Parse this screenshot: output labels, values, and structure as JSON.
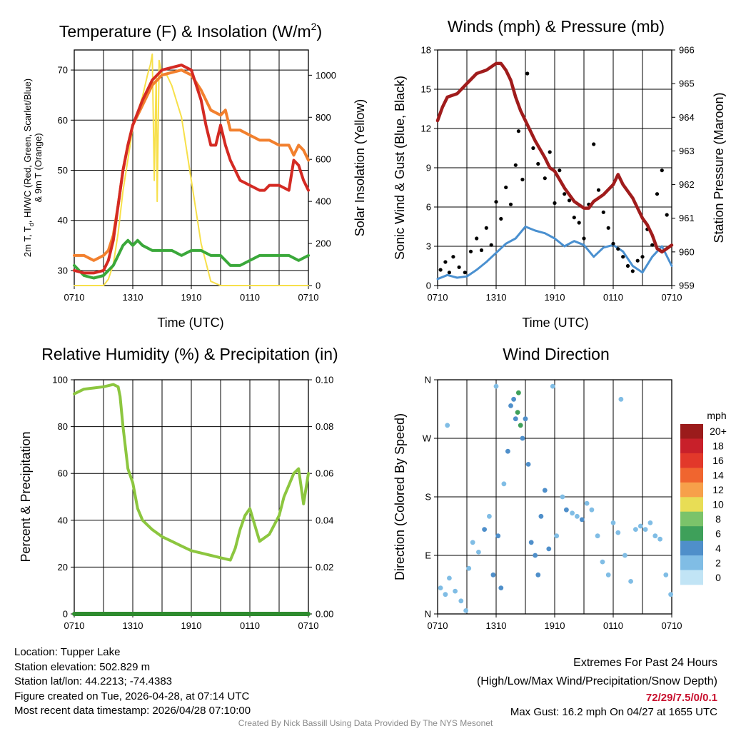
{
  "panels": {
    "temperature": {
      "title": "Temperature (F) & Insolation (W/m",
      "title_sup": "2",
      "title_end": ")",
      "ylabel_line1": "2m T, T",
      "ylabel_sub": "d",
      "ylabel_line1_end": ", HI/WC (Red, Green, Scarlet/Blue)",
      "ylabel_line2": "& 9m T (Orange)",
      "ylabel_right": "Solar Insolation (Yellow)",
      "xlabel": "Time (UTC)"
    },
    "winds": {
      "title": "Winds (mph) & Pressure (mb)",
      "ylabel_left": "Sonic Wind & Gust (Blue, Black)",
      "ylabel_right": "Station Pressure (Maroon)",
      "xlabel": "Time (UTC)"
    },
    "humidity": {
      "title": "Relative Humidity (%) & Precipitation (in)",
      "ylabel": "Percent & Precipitation"
    },
    "direction": {
      "title": "Wind Direction",
      "ylabel": "Direction (Colored By Speed)",
      "legend_title": "mph"
    }
  },
  "chart_data": [
    {
      "type": "line",
      "id": "temperature",
      "x_ticks": [
        "0710",
        "1310",
        "1910",
        "0110",
        "0710"
      ],
      "x_range_hours": [
        0,
        24
      ],
      "ylim": [
        27,
        74
      ],
      "y_ticks": [
        30,
        40,
        50,
        60,
        70
      ],
      "y2lim": [
        0,
        1120
      ],
      "y2_ticks": [
        0,
        200,
        400,
        600,
        800,
        1000
      ],
      "series": [
        {
          "name": "2m T",
          "color": "#d42a23",
          "axis": "left",
          "x": [
            0,
            1,
            2,
            3,
            3.5,
            4,
            4.5,
            5,
            5.5,
            6,
            7,
            8,
            9,
            10,
            11,
            12,
            13,
            13.5,
            14,
            14.5,
            15,
            15.5,
            16,
            16.5,
            17,
            18,
            19,
            19.5,
            20,
            21,
            22,
            22.5,
            23,
            23.5,
            24
          ],
          "y": [
            30,
            29.5,
            29.5,
            30,
            32,
            36,
            43,
            50,
            55,
            59,
            64,
            68,
            70,
            70.5,
            71,
            70,
            64,
            59,
            55,
            55,
            59,
            55,
            52,
            50,
            48,
            47,
            46,
            46,
            47,
            47,
            46,
            52,
            51,
            48,
            46
          ]
        },
        {
          "name": "9m T",
          "color": "#f2802e",
          "axis": "left",
          "x": [
            0,
            1,
            2,
            3,
            3.5,
            4,
            4.5,
            5,
            5.5,
            6,
            7,
            8,
            9,
            10,
            11,
            12,
            13,
            14,
            15,
            15.5,
            16,
            17,
            18,
            19,
            20,
            21,
            21.5,
            22,
            22.5,
            23,
            23.5,
            24
          ],
          "y": [
            33,
            33,
            32,
            33,
            34,
            37,
            43,
            50,
            55,
            59,
            63,
            67,
            69,
            69.5,
            70,
            69,
            66,
            62,
            61,
            62,
            58,
            58,
            57,
            56,
            56,
            55,
            55,
            55,
            53,
            55,
            54,
            52
          ]
        },
        {
          "name": "HI/WC",
          "color": "#3aa83a",
          "axis": "left",
          "x": [
            0,
            1,
            2,
            3,
            3.5,
            4,
            4.5,
            5,
            5.5,
            6,
            6.5,
            7,
            8,
            9,
            10,
            11,
            12,
            13,
            14,
            15,
            16,
            17,
            18,
            19,
            20,
            21,
            22,
            23,
            24
          ],
          "y": [
            31,
            29,
            28.5,
            29,
            30,
            31,
            33,
            35,
            36,
            35,
            36,
            35,
            34,
            34,
            34,
            33,
            34,
            34,
            33,
            33,
            31,
            31,
            32,
            33,
            33,
            33,
            33,
            32,
            33
          ]
        },
        {
          "name": "Solar Insolation",
          "color": "#f7e04a",
          "axis": "right",
          "x": [
            0,
            1,
            2,
            3,
            3.5,
            4,
            4.5,
            5,
            5.5,
            6,
            7,
            7.5,
            7.8,
            8,
            8.2,
            8.4,
            8.5,
            8.7,
            9,
            9.5,
            10,
            11,
            12,
            13,
            14,
            15,
            16,
            17,
            18,
            19,
            20,
            21,
            22,
            23,
            24
          ],
          "y": [
            0,
            0,
            0,
            0,
            30,
            100,
            250,
            450,
            600,
            750,
            900,
            1000,
            1050,
            1100,
            500,
            1000,
            400,
            1070,
            1000,
            1000,
            950,
            800,
            500,
            200,
            20,
            0,
            0,
            0,
            0,
            0,
            0,
            0,
            0,
            0,
            0
          ]
        }
      ]
    },
    {
      "type": "scatter",
      "id": "winds",
      "x_ticks": [
        "0710",
        "1310",
        "1910",
        "0110",
        "0710"
      ],
      "x_range_hours": [
        0,
        24
      ],
      "ylim": [
        0,
        18
      ],
      "y_ticks": [
        0,
        3,
        6,
        9,
        12,
        15,
        18
      ],
      "y2lim": [
        959,
        966
      ],
      "y2_ticks": [
        959,
        960,
        961,
        962,
        963,
        964,
        965,
        966
      ],
      "series": [
        {
          "name": "Sonic Wind",
          "color": "#4a90d0",
          "axis": "left",
          "x": [
            0,
            1,
            2,
            3,
            4,
            5,
            6,
            7,
            8,
            9,
            10,
            11,
            12,
            13,
            14,
            15,
            16,
            17,
            18,
            19,
            20,
            21,
            22,
            23,
            24
          ],
          "y": [
            0.5,
            0.8,
            0.6,
            0.7,
            1.2,
            1.8,
            2.5,
            3.2,
            3.6,
            4.5,
            4.2,
            4.0,
            3.6,
            3.0,
            3.4,
            3.1,
            2.2,
            2.9,
            3.1,
            2.6,
            1.5,
            1.0,
            2.2,
            3.0,
            1.5
          ]
        },
        {
          "name": "Gust",
          "color": "#000000",
          "axis": "left",
          "x": [
            0.3,
            0.8,
            1.2,
            1.6,
            2.2,
            2.8,
            3.4,
            4.0,
            4.5,
            5.0,
            5.5,
            6.0,
            6.5,
            7.0,
            7.5,
            8.0,
            8.3,
            8.7,
            9.2,
            9.8,
            10.3,
            11.0,
            11.5,
            12.0,
            12.5,
            13.0,
            13.5,
            14.0,
            14.5,
            15.0,
            15.5,
            16.0,
            16.5,
            17.0,
            17.5,
            18.0,
            18.5,
            19.0,
            19.5,
            20.0,
            20.5,
            21.0,
            21.5,
            22.0,
            22.5,
            23.0,
            23.5
          ],
          "y": [
            1.2,
            1.8,
            1.0,
            2.2,
            1.4,
            1.0,
            2.6,
            3.6,
            2.7,
            4.4,
            3.1,
            6.4,
            5.1,
            7.5,
            6.2,
            9.2,
            11.8,
            8.1,
            16.2,
            10.5,
            9.3,
            8.2,
            10.2,
            6.3,
            8.8,
            7.0,
            6.5,
            5.2,
            4.8,
            3.6,
            6.2,
            10.8,
            7.3,
            5.6,
            4.4,
            3.2,
            2.8,
            2.2,
            1.5,
            1.1,
            1.9,
            2.2,
            4.3,
            3.1,
            7.0,
            8.8,
            5.4
          ]
        },
        {
          "name": "Station Pressure",
          "color": "#a01c1c",
          "axis": "right",
          "x": [
            0,
            0.5,
            1,
            2,
            3,
            4,
            5,
            6,
            6.5,
            7,
            7.5,
            8,
            8.5,
            9,
            10,
            11,
            11.5,
            12,
            13,
            14,
            15,
            15.5,
            16,
            17,
            18,
            18.5,
            19,
            20,
            21,
            21.5,
            22,
            22.5,
            23,
            23.5,
            24
          ],
          "y": [
            963.9,
            964.3,
            964.6,
            964.7,
            965.0,
            965.3,
            965.4,
            965.6,
            965.6,
            965.4,
            965.1,
            964.6,
            964.2,
            963.9,
            963.3,
            962.8,
            962.5,
            962.4,
            961.9,
            961.5,
            961.3,
            961.3,
            961.5,
            961.7,
            962.0,
            962.3,
            962.0,
            961.6,
            961.0,
            960.8,
            960.5,
            960.1,
            960.0,
            960.1,
            960.2
          ]
        }
      ]
    },
    {
      "type": "line",
      "id": "humidity",
      "x_ticks": [
        "0710",
        "1310",
        "1910",
        "0110",
        "0710"
      ],
      "x_range_hours": [
        0,
        24
      ],
      "ylim": [
        0,
        100
      ],
      "y_ticks": [
        0,
        20,
        40,
        60,
        80,
        100
      ],
      "y2lim": [
        0,
        0.1
      ],
      "y2_ticks": [
        "0.00",
        "0.02",
        "0.04",
        "0.06",
        "0.08",
        "0.10"
      ],
      "series": [
        {
          "name": "Relative Humidity",
          "color": "#8cc63f",
          "axis": "left",
          "x": [
            0,
            1,
            2,
            3,
            4,
            4.5,
            4.7,
            5,
            5.5,
            6,
            6.5,
            7,
            8,
            9,
            10,
            11,
            12,
            13,
            14,
            15,
            16,
            16.5,
            17,
            17.5,
            18,
            19,
            20,
            21,
            21.5,
            22,
            22.5,
            23,
            23.5,
            24
          ],
          "y": [
            94,
            96,
            96.5,
            97,
            98,
            97,
            93,
            80,
            62,
            56,
            45,
            40,
            36,
            33,
            31,
            29,
            27,
            26,
            25,
            24,
            23,
            28,
            36,
            42,
            45,
            31,
            34,
            42,
            50,
            55,
            60,
            62,
            47,
            60
          ]
        },
        {
          "name": "Precipitation",
          "color": "#2e8b2e",
          "axis": "right",
          "x": [
            0,
            24
          ],
          "y": [
            0.0,
            0.0
          ]
        }
      ]
    },
    {
      "type": "scatter",
      "id": "direction",
      "x_ticks": [
        "0710",
        "1310",
        "1910",
        "0110",
        "0710"
      ],
      "x_range_hours": [
        0,
        24
      ],
      "y_ticks": [
        "N",
        "E",
        "S",
        "W",
        "N"
      ],
      "ylim_degrees": [
        0,
        360
      ],
      "colorbar_labels": [
        "20+",
        "18",
        "16",
        "14",
        "12",
        "10",
        "8",
        "6",
        "4",
        "2",
        "0"
      ],
      "colorbar_colors": [
        "#9b1b1b",
        "#c8202a",
        "#e2382a",
        "#f0652f",
        "#f7a04a",
        "#e8dd55",
        "#7bc36a",
        "#3ea05a",
        "#4f8fca",
        "#80bde5",
        "#c1e4f5"
      ],
      "points": [
        {
          "x": 0.3,
          "d": 40,
          "s": 1
        },
        {
          "x": 0.8,
          "d": 30,
          "s": 1
        },
        {
          "x": 1.2,
          "d": 55,
          "s": 1
        },
        {
          "x": 1.8,
          "d": 35,
          "s": 2
        },
        {
          "x": 2.4,
          "d": 20,
          "s": 1
        },
        {
          "x": 2.9,
          "d": 5,
          "s": 1
        },
        {
          "x": 1.0,
          "d": 290,
          "s": 1
        },
        {
          "x": 3.2,
          "d": 70,
          "s": 2
        },
        {
          "x": 3.6,
          "d": 110,
          "s": 2
        },
        {
          "x": 4.2,
          "d": 95,
          "s": 2
        },
        {
          "x": 4.8,
          "d": 130,
          "s": 3
        },
        {
          "x": 5.3,
          "d": 150,
          "s": 2
        },
        {
          "x": 5.7,
          "d": 60,
          "s": 3
        },
        {
          "x": 6.2,
          "d": 120,
          "s": 4
        },
        {
          "x": 6.5,
          "d": 40,
          "s": 3
        },
        {
          "x": 6.0,
          "d": 350,
          "s": 2
        },
        {
          "x": 6.8,
          "d": 200,
          "s": 2
        },
        {
          "x": 7.2,
          "d": 250,
          "s": 3
        },
        {
          "x": 7.5,
          "d": 320,
          "s": 4
        },
        {
          "x": 7.8,
          "d": 330,
          "s": 3
        },
        {
          "x": 8.0,
          "d": 300,
          "s": 4
        },
        {
          "x": 8.2,
          "d": 310,
          "s": 6
        },
        {
          "x": 8.3,
          "d": 340,
          "s": 6
        },
        {
          "x": 8.5,
          "d": 290,
          "s": 5
        },
        {
          "x": 8.7,
          "d": 270,
          "s": 4
        },
        {
          "x": 9.0,
          "d": 300,
          "s": 4
        },
        {
          "x": 9.3,
          "d": 230,
          "s": 4
        },
        {
          "x": 9.6,
          "d": 110,
          "s": 3
        },
        {
          "x": 10.0,
          "d": 90,
          "s": 4
        },
        {
          "x": 10.3,
          "d": 60,
          "s": 4
        },
        {
          "x": 10.6,
          "d": 150,
          "s": 3
        },
        {
          "x": 11.0,
          "d": 190,
          "s": 3
        },
        {
          "x": 11.4,
          "d": 100,
          "s": 4
        },
        {
          "x": 11.8,
          "d": 350,
          "s": 2
        },
        {
          "x": 12.2,
          "d": 120,
          "s": 2
        },
        {
          "x": 12.8,
          "d": 180,
          "s": 2
        },
        {
          "x": 13.2,
          "d": 160,
          "s": 3
        },
        {
          "x": 13.8,
          "d": 155,
          "s": 2
        },
        {
          "x": 14.3,
          "d": 150,
          "s": 2
        },
        {
          "x": 14.8,
          "d": 145,
          "s": 3
        },
        {
          "x": 15.3,
          "d": 170,
          "s": 2
        },
        {
          "x": 15.8,
          "d": 160,
          "s": 2
        },
        {
          "x": 16.4,
          "d": 120,
          "s": 2
        },
        {
          "x": 16.9,
          "d": 80,
          "s": 1
        },
        {
          "x": 17.5,
          "d": 60,
          "s": 1
        },
        {
          "x": 18.0,
          "d": 140,
          "s": 2
        },
        {
          "x": 18.5,
          "d": 125,
          "s": 2
        },
        {
          "x": 18.8,
          "d": 330,
          "s": 1
        },
        {
          "x": 19.2,
          "d": 90,
          "s": 2
        },
        {
          "x": 19.8,
          "d": 50,
          "s": 2
        },
        {
          "x": 20.3,
          "d": 130,
          "s": 2
        },
        {
          "x": 20.8,
          "d": 135,
          "s": 1
        },
        {
          "x": 21.3,
          "d": 130,
          "s": 2
        },
        {
          "x": 21.8,
          "d": 140,
          "s": 2
        },
        {
          "x": 22.3,
          "d": 120,
          "s": 2
        },
        {
          "x": 22.8,
          "d": 115,
          "s": 1
        },
        {
          "x": 23.4,
          "d": 60,
          "s": 2
        },
        {
          "x": 23.9,
          "d": 30,
          "s": 1
        }
      ]
    }
  ],
  "footer": {
    "location": "Location: Tupper Lake",
    "elevation": "Station elevation: 502.829 m",
    "latlon": "Station lat/lon: 44.2213; -74.4383",
    "created": "Figure created on Tue, 2026-04-28, at 07:14 UTC",
    "recent": "Most recent data timestamp: 2026/04/28 07:10:00",
    "extremes_title": "Extremes For Past 24 Hours",
    "extremes_legend": "(High/Low/Max Wind/Precipitation/Snow Depth)",
    "extremes_values": "72/29/7.5/0/0.1",
    "max_gust": "Max Gust: 16.2 mph On 04/27 at 1655 UTC",
    "credit": "Created By Nick Bassill Using Data Provided By The NYS Mesonet"
  },
  "colors": {
    "gust": "#000000",
    "grid": "#000000"
  }
}
